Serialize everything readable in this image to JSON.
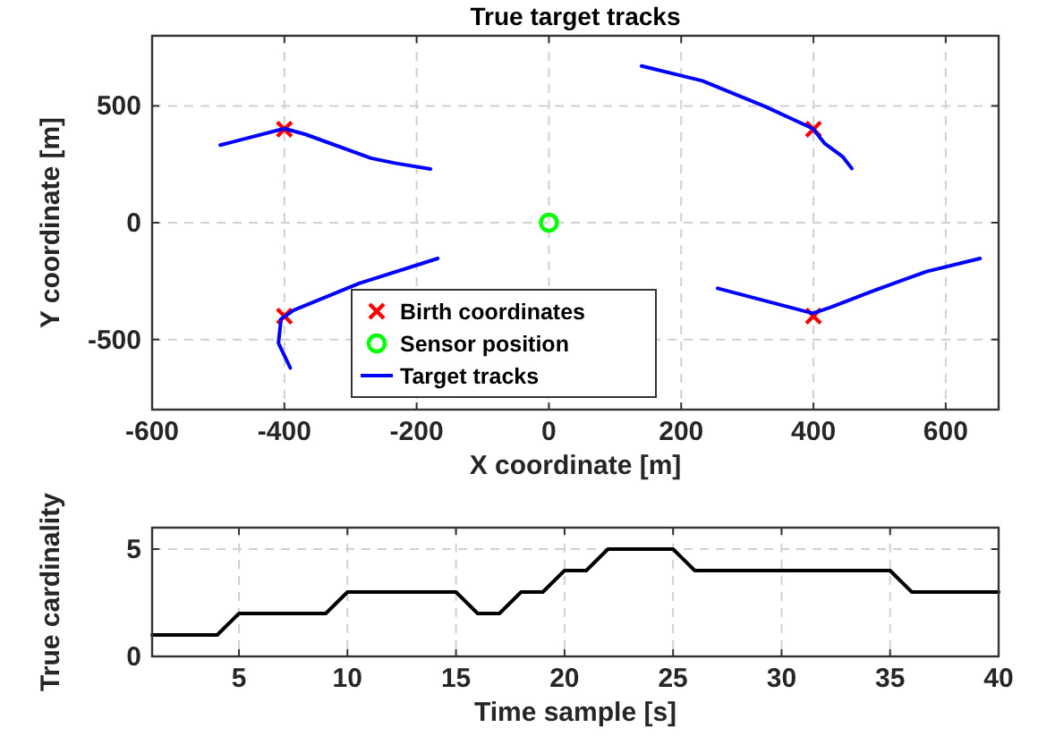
{
  "chart_data": [
    {
      "type": "line",
      "title": "True target tracks",
      "xlabel": "X coordinate [m]",
      "ylabel": "Y coordinate [m]",
      "xlim": [
        -600,
        680
      ],
      "ylim": [
        -800,
        800
      ],
      "xticks": [
        -600,
        -400,
        -200,
        0,
        200,
        400,
        600
      ],
      "yticks": [
        -500,
        0,
        500
      ],
      "grid": true,
      "legend": "bottom",
      "series": [
        {
          "name": "Birth coordinates",
          "type": "scatter",
          "marker": "cross",
          "color": "#ff0000",
          "x": [
            -400,
            400,
            -400,
            400
          ],
          "values": [
            400,
            400,
            -400,
            -400
          ]
        },
        {
          "name": "Sensor position",
          "type": "scatter",
          "marker": "circle",
          "color": "#00ff00",
          "x": [
            0
          ],
          "values": [
            0
          ]
        },
        {
          "name": "Target tracks",
          "type": "line",
          "marker": "none",
          "color": "#0000ff",
          "x": [
            -497,
            -400,
            -368,
            -269,
            -233,
            -179
          ],
          "values": [
            332,
            403,
            378,
            276,
            255,
            230
          ]
        },
        {
          "type": "line",
          "marker": "none",
          "color": "#0000ff",
          "x": [
            140,
            232,
            327,
            399,
            417,
            444,
            458
          ],
          "values": [
            671,
            607,
            497,
            403,
            339,
            283,
            232
          ]
        },
        {
          "type": "line",
          "marker": "none",
          "color": "#0000ff",
          "x": [
            -391,
            -409,
            -405,
            -386,
            -287,
            -168
          ],
          "values": [
            -622,
            -515,
            -413,
            -375,
            -260,
            -153
          ]
        },
        {
          "type": "line",
          "marker": "none",
          "color": "#0000ff",
          "x": [
            255,
            399,
            426,
            489,
            571,
            652
          ],
          "values": [
            -281,
            -388,
            -362,
            -293,
            -209,
            -153
          ]
        }
      ]
    },
    {
      "type": "line",
      "xlabel": "Time sample [s]",
      "ylabel": "True cardinality",
      "xlim": [
        1,
        40
      ],
      "ylim": [
        0,
        6
      ],
      "xticks": [
        5,
        10,
        15,
        20,
        25,
        30,
        35,
        40
      ],
      "yticks": [
        0,
        5
      ],
      "grid": true,
      "marker": "none",
      "series": [
        {
          "color": "#000000",
          "x": [
            1,
            2,
            3,
            4,
            5,
            6,
            7,
            8,
            9,
            10,
            11,
            12,
            13,
            14,
            15,
            16,
            17,
            18,
            19,
            20,
            21,
            22,
            23,
            24,
            25,
            26,
            27,
            28,
            29,
            30,
            31,
            32,
            33,
            34,
            35,
            36,
            37,
            38,
            39,
            40
          ],
          "values": [
            1,
            1,
            1,
            1,
            2,
            2,
            2,
            2,
            2,
            3,
            3,
            3,
            3,
            3,
            3,
            2,
            2,
            3,
            3,
            4,
            4,
            5,
            5,
            5,
            5,
            4,
            4,
            4,
            4,
            4,
            4,
            4,
            4,
            4,
            4,
            3,
            3,
            3,
            3,
            3
          ]
        }
      ]
    }
  ]
}
